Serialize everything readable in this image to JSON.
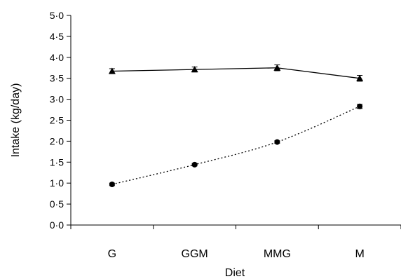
{
  "chart_data": {
    "type": "line",
    "title": "",
    "xlabel": "Diet",
    "ylabel": "Intake (kg/day)",
    "categories": [
      "G",
      "GGM",
      "MMG",
      "M"
    ],
    "ylim": [
      0,
      5
    ],
    "y_ticks": [
      "0·0",
      "0·5",
      "1·0",
      "1·5",
      "2·0",
      "2·5",
      "3·0",
      "3·5",
      "4·0",
      "4·5",
      "5·0"
    ],
    "grid": false,
    "legend": "none",
    "series": [
      {
        "marker": "triangle",
        "line_style": "solid",
        "color": "#000000",
        "values": [
          3.67,
          3.71,
          3.75,
          3.5
        ],
        "errors": [
          0.06,
          0.06,
          0.07,
          0.07
        ]
      },
      {
        "marker": "circle",
        "line_style": "dotted",
        "color": "#000000",
        "values": [
          0.97,
          1.44,
          1.98,
          2.83
        ],
        "errors": [
          0.03,
          0.03,
          0.03,
          0.05
        ]
      }
    ]
  }
}
